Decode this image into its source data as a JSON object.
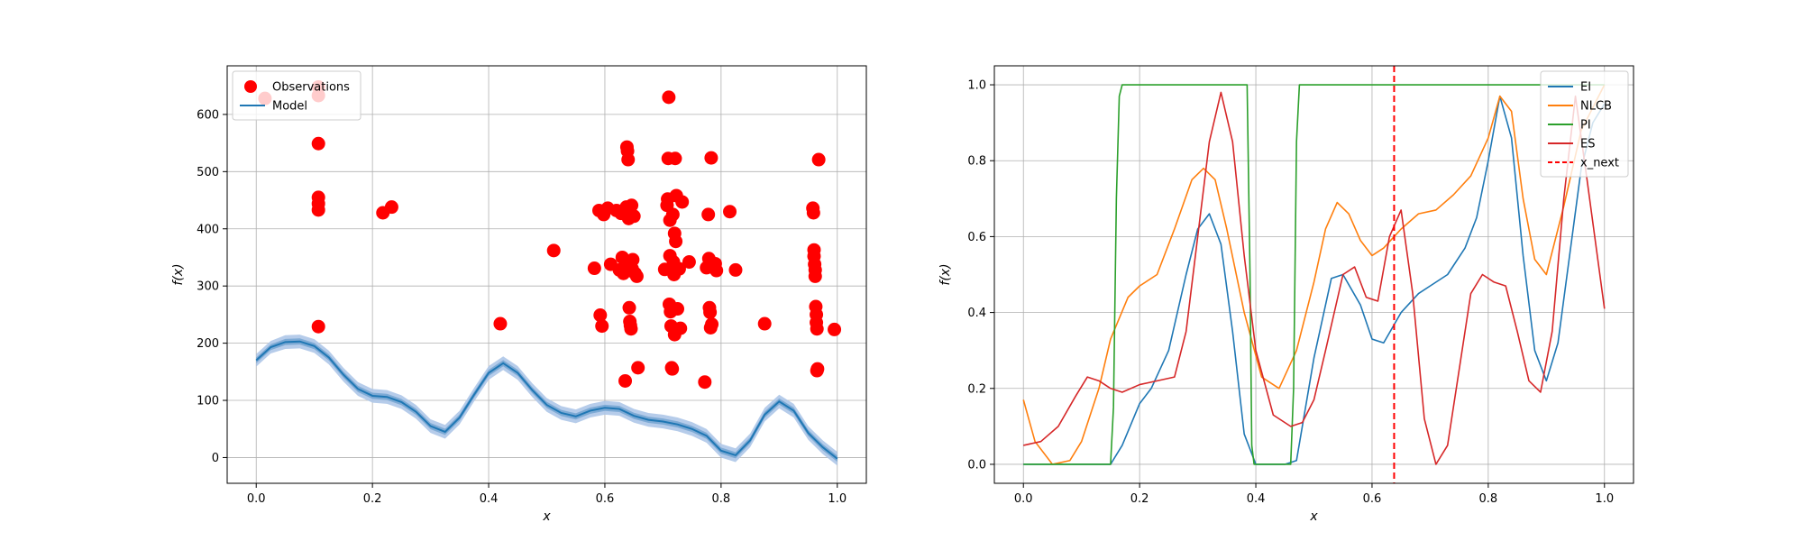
{
  "chart_data": [
    {
      "type": "scatter",
      "xlabel": "x",
      "ylabel": "f(x)",
      "xlim": [
        -0.05,
        1.05
      ],
      "ylim": [
        -45,
        685
      ],
      "xticks": [
        0.0,
        0.2,
        0.4,
        0.6,
        0.8,
        1.0
      ],
      "yticks": [
        0,
        100,
        200,
        300,
        400,
        500,
        600
      ],
      "xtick_labels": [
        "0.0",
        "0.2",
        "0.4",
        "0.6",
        "0.8",
        "1.0"
      ],
      "ytick_labels": [
        "0",
        "100",
        "200",
        "300",
        "400",
        "500",
        "600"
      ],
      "grid": true,
      "legend_position": "top-left",
      "series": [
        {
          "name": "Observations",
          "kind": "scatter",
          "color": "#ff0000",
          "points": [
            [
              0.015,
              628
            ],
            [
              0.107,
              648
            ],
            [
              0.107,
              633
            ],
            [
              0.107,
              549
            ],
            [
              0.107,
              455
            ],
            [
              0.107,
              444
            ],
            [
              0.107,
              433
            ],
            [
              0.107,
              229
            ],
            [
              0.218,
              428
            ],
            [
              0.233,
              438
            ],
            [
              0.42,
              234
            ],
            [
              0.512,
              362
            ],
            [
              0.582,
              331
            ],
            [
              0.59,
              432
            ],
            [
              0.592,
              249
            ],
            [
              0.595,
              230
            ],
            [
              0.598,
              425
            ],
            [
              0.605,
              436
            ],
            [
              0.61,
              338
            ],
            [
              0.62,
              432
            ],
            [
              0.625,
              328
            ],
            [
              0.628,
              427
            ],
            [
              0.63,
              350
            ],
            [
              0.632,
              322
            ],
            [
              0.635,
              134
            ],
            [
              0.637,
              438
            ],
            [
              0.638,
              543
            ],
            [
              0.639,
              536
            ],
            [
              0.64,
              521
            ],
            [
              0.641,
              418
            ],
            [
              0.642,
              340
            ],
            [
              0.642,
              262
            ],
            [
              0.643,
              238
            ],
            [
              0.644,
              231
            ],
            [
              0.645,
              225
            ],
            [
              0.646,
              441
            ],
            [
              0.647,
              330
            ],
            [
              0.648,
              346
            ],
            [
              0.65,
              422
            ],
            [
              0.652,
              322
            ],
            [
              0.655,
              317
            ],
            [
              0.657,
              157
            ],
            [
              0.703,
              329
            ],
            [
              0.707,
              441
            ],
            [
              0.708,
              452
            ],
            [
              0.709,
              523
            ],
            [
              0.71,
              630
            ],
            [
              0.711,
              268
            ],
            [
              0.712,
              415
            ],
            [
              0.712,
              353
            ],
            [
              0.713,
              255
            ],
            [
              0.714,
              230
            ],
            [
              0.715,
              157
            ],
            [
              0.716,
              155
            ],
            [
              0.717,
              331
            ],
            [
              0.717,
              425
            ],
            [
              0.718,
              342
            ],
            [
              0.719,
              320
            ],
            [
              0.72,
              392
            ],
            [
              0.72,
              215
            ],
            [
              0.721,
              523
            ],
            [
              0.722,
              378
            ],
            [
              0.723,
              458
            ],
            [
              0.725,
              260
            ],
            [
              0.728,
              330
            ],
            [
              0.73,
              226
            ],
            [
              0.733,
              447
            ],
            [
              0.745,
              342
            ],
            [
              0.772,
              132
            ],
            [
              0.775,
              332
            ],
            [
              0.778,
              425
            ],
            [
              0.779,
              348
            ],
            [
              0.78,
              262
            ],
            [
              0.781,
              254
            ],
            [
              0.782,
              227
            ],
            [
              0.783,
              524
            ],
            [
              0.784,
              233
            ],
            [
              0.79,
              339
            ],
            [
              0.792,
              327
            ],
            [
              0.815,
              430
            ],
            [
              0.825,
              328
            ],
            [
              0.875,
              234
            ],
            [
              0.958,
              436
            ],
            [
              0.959,
              428
            ],
            [
              0.96,
              363
            ],
            [
              0.96,
              352
            ],
            [
              0.961,
              338
            ],
            [
              0.962,
              328
            ],
            [
              0.962,
              317
            ],
            [
              0.963,
              264
            ],
            [
              0.964,
              250
            ],
            [
              0.964,
              236
            ],
            [
              0.965,
              225
            ],
            [
              0.965,
              152
            ],
            [
              0.966,
              155
            ],
            [
              0.968,
              521
            ],
            [
              0.995,
              224
            ]
          ]
        },
        {
          "name": "Model",
          "kind": "line",
          "color": "#1f77b4",
          "band_color": "#aec7e8",
          "x": [
            0.0,
            0.025,
            0.05,
            0.075,
            0.1,
            0.125,
            0.15,
            0.175,
            0.2,
            0.225,
            0.25,
            0.275,
            0.3,
            0.325,
            0.35,
            0.375,
            0.4,
            0.425,
            0.45,
            0.475,
            0.5,
            0.525,
            0.55,
            0.575,
            0.6,
            0.625,
            0.65,
            0.675,
            0.7,
            0.725,
            0.75,
            0.775,
            0.8,
            0.825,
            0.85,
            0.875,
            0.9,
            0.925,
            0.95,
            0.975,
            1.0
          ],
          "y": [
            170,
            193,
            202,
            203,
            195,
            175,
            145,
            120,
            108,
            106,
            97,
            80,
            55,
            45,
            70,
            110,
            148,
            165,
            148,
            118,
            92,
            78,
            72,
            82,
            87,
            85,
            73,
            66,
            63,
            58,
            50,
            38,
            12,
            4,
            30,
            75,
            98,
            82,
            43,
            18,
            -2
          ],
          "band": [
            11,
            11,
            12,
            12,
            12,
            12,
            12,
            12,
            12,
            12,
            12,
            12,
            12,
            12,
            12,
            12,
            12,
            12,
            12,
            12,
            12,
            12,
            12,
            12,
            12,
            12,
            12,
            12,
            12,
            12,
            12,
            12,
            12,
            12,
            12,
            12,
            12,
            12,
            12,
            12,
            12
          ]
        }
      ]
    },
    {
      "type": "line",
      "xlabel": "x",
      "ylabel": "f(x)",
      "xlim": [
        -0.05,
        1.05
      ],
      "ylim": [
        -0.05,
        1.05
      ],
      "xticks": [
        0.0,
        0.2,
        0.4,
        0.6,
        0.8,
        1.0
      ],
      "yticks": [
        0.0,
        0.2,
        0.4,
        0.6,
        0.8,
        1.0
      ],
      "xtick_labels": [
        "0.0",
        "0.2",
        "0.4",
        "0.6",
        "0.8",
        "1.0"
      ],
      "ytick_labels": [
        "0.0",
        "0.2",
        "0.4",
        "0.6",
        "0.8",
        "1.0"
      ],
      "grid": true,
      "legend_position": "top-right",
      "series": [
        {
          "name": "EI",
          "color": "#1f77b4",
          "x": [
            0.0,
            0.05,
            0.1,
            0.15,
            0.17,
            0.2,
            0.22,
            0.25,
            0.28,
            0.3,
            0.32,
            0.34,
            0.36,
            0.38,
            0.4,
            0.45,
            0.47,
            0.5,
            0.53,
            0.55,
            0.58,
            0.6,
            0.62,
            0.65,
            0.68,
            0.7,
            0.73,
            0.76,
            0.78,
            0.8,
            0.82,
            0.84,
            0.86,
            0.88,
            0.9,
            0.92,
            0.94,
            0.96,
            0.98,
            1.0
          ],
          "y": [
            0.0,
            0.0,
            0.0,
            0.0,
            0.05,
            0.16,
            0.2,
            0.3,
            0.5,
            0.62,
            0.66,
            0.58,
            0.35,
            0.08,
            0.0,
            0.0,
            0.01,
            0.28,
            0.49,
            0.5,
            0.42,
            0.33,
            0.32,
            0.4,
            0.45,
            0.47,
            0.5,
            0.57,
            0.65,
            0.8,
            0.97,
            0.86,
            0.55,
            0.3,
            0.22,
            0.32,
            0.55,
            0.78,
            0.9,
            0.95
          ]
        },
        {
          "name": "NLCB",
          "color": "#ff7f0e",
          "x": [
            0.0,
            0.02,
            0.05,
            0.08,
            0.1,
            0.13,
            0.15,
            0.18,
            0.2,
            0.23,
            0.26,
            0.29,
            0.31,
            0.33,
            0.35,
            0.38,
            0.41,
            0.44,
            0.47,
            0.5,
            0.52,
            0.54,
            0.56,
            0.58,
            0.6,
            0.62,
            0.65,
            0.68,
            0.71,
            0.74,
            0.77,
            0.8,
            0.82,
            0.84,
            0.86,
            0.88,
            0.9,
            0.93,
            0.96,
            1.0
          ],
          "y": [
            0.17,
            0.06,
            0.0,
            0.01,
            0.06,
            0.2,
            0.33,
            0.44,
            0.47,
            0.5,
            0.62,
            0.75,
            0.78,
            0.75,
            0.62,
            0.4,
            0.23,
            0.2,
            0.3,
            0.48,
            0.62,
            0.69,
            0.66,
            0.59,
            0.55,
            0.57,
            0.62,
            0.66,
            0.67,
            0.71,
            0.76,
            0.86,
            0.97,
            0.93,
            0.7,
            0.54,
            0.5,
            0.68,
            0.88,
            1.0
          ]
        },
        {
          "name": "PI",
          "color": "#2ca02c",
          "x": [
            0.0,
            0.15,
            0.155,
            0.16,
            0.165,
            0.17,
            0.385,
            0.39,
            0.393,
            0.397,
            0.46,
            0.465,
            0.47,
            0.475,
            1.0
          ],
          "y": [
            0.0,
            0.0,
            0.15,
            0.7,
            0.97,
            1.0,
            1.0,
            0.5,
            0.05,
            0.0,
            0.0,
            0.2,
            0.85,
            1.0,
            1.0
          ]
        },
        {
          "name": "ES",
          "color": "#d62728",
          "x": [
            0.0,
            0.03,
            0.06,
            0.09,
            0.11,
            0.13,
            0.15,
            0.17,
            0.2,
            0.23,
            0.26,
            0.28,
            0.3,
            0.32,
            0.34,
            0.36,
            0.38,
            0.4,
            0.43,
            0.46,
            0.48,
            0.5,
            0.52,
            0.55,
            0.57,
            0.59,
            0.61,
            0.63,
            0.65,
            0.67,
            0.69,
            0.71,
            0.73,
            0.75,
            0.77,
            0.79,
            0.81,
            0.83,
            0.85,
            0.87,
            0.89,
            0.91,
            0.93,
            0.95,
            0.97,
            1.0
          ],
          "y": [
            0.05,
            0.06,
            0.1,
            0.18,
            0.23,
            0.22,
            0.2,
            0.19,
            0.21,
            0.22,
            0.23,
            0.35,
            0.6,
            0.85,
            0.98,
            0.85,
            0.55,
            0.3,
            0.13,
            0.1,
            0.11,
            0.17,
            0.3,
            0.5,
            0.52,
            0.44,
            0.43,
            0.6,
            0.67,
            0.45,
            0.12,
            0.0,
            0.05,
            0.25,
            0.45,
            0.5,
            0.48,
            0.47,
            0.35,
            0.22,
            0.19,
            0.35,
            0.7,
            0.97,
            0.75,
            0.41
          ]
        }
      ],
      "vline": {
        "name": "x_next",
        "x": 0.638,
        "color": "#ff0000",
        "style": "dashed"
      }
    }
  ]
}
